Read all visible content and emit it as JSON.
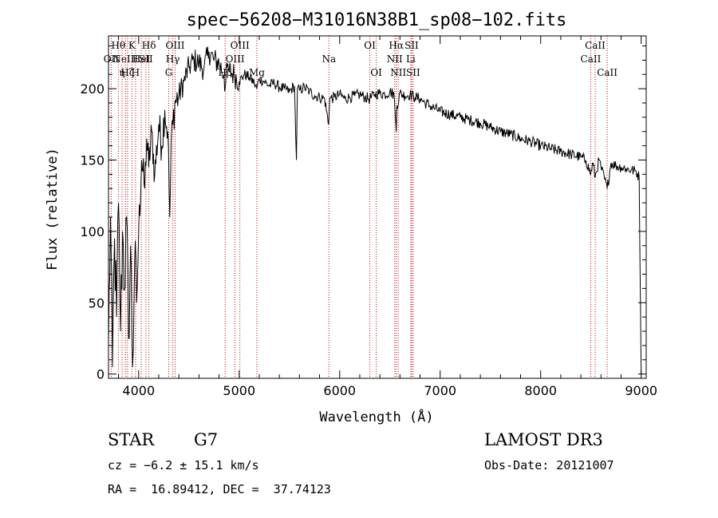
{
  "chart_data": {
    "type": "line",
    "title": "spec−56208−M31016N38B1_sp08−102.fits",
    "xlabel": "Wavelength (Å)",
    "ylabel": "Flux (relative)",
    "xlim": [
      3700,
      9050
    ],
    "ylim": [
      -3,
      237
    ],
    "xticks": [
      4000,
      5000,
      6000,
      7000,
      8000,
      9000
    ],
    "yticks": [
      0,
      50,
      100,
      150,
      200
    ],
    "grid": false,
    "series": [
      {
        "name": "flux",
        "x": [
          3700,
          3720,
          3740,
          3760,
          3780,
          3800,
          3820,
          3840,
          3860,
          3880,
          3900,
          3920,
          3940,
          3960,
          3980,
          4000,
          4030,
          4060,
          4080,
          4100,
          4130,
          4160,
          4200,
          4230,
          4260,
          4290,
          4310,
          4330,
          4340,
          4360,
          4400,
          4450,
          4500,
          4550,
          4600,
          4650,
          4700,
          4750,
          4800,
          4850,
          4861,
          4880,
          4900,
          4950,
          5000,
          5050,
          5100,
          5150,
          5175,
          5200,
          5250,
          5300,
          5350,
          5400,
          5450,
          5500,
          5550,
          5570,
          5580,
          5600,
          5650,
          5700,
          5750,
          5800,
          5850,
          5890,
          5900,
          5950,
          6000,
          6050,
          6100,
          6150,
          6200,
          6250,
          6300,
          6350,
          6400,
          6450,
          6500,
          6540,
          6560,
          6563,
          6570,
          6600,
          6650,
          6700,
          6750,
          6800,
          6850,
          6900,
          6950,
          7000,
          7100,
          7200,
          7300,
          7400,
          7500,
          7600,
          7700,
          7800,
          7900,
          8000,
          8100,
          8200,
          8300,
          8400,
          8450,
          8498,
          8520,
          8542,
          8580,
          8600,
          8662,
          8700,
          8750,
          8800,
          8850,
          8900,
          8950,
          8980,
          9000
        ],
        "values": [
          20,
          110,
          5,
          95,
          40,
          120,
          30,
          100,
          60,
          110,
          25,
          90,
          5,
          80,
          50,
          100,
          150,
          130,
          165,
          145,
          170,
          140,
          175,
          160,
          185,
          170,
          110,
          175,
          175,
          190,
          195,
          205,
          215,
          220,
          218,
          214,
          226,
          220,
          218,
          210,
          200,
          215,
          212,
          210,
          205,
          210,
          208,
          204,
          200,
          207,
          205,
          202,
          204,
          201,
          200,
          198,
          202,
          150,
          200,
          199,
          201,
          198,
          195,
          194,
          193,
          175,
          193,
          194,
          196,
          193,
          194,
          195,
          196,
          194,
          193,
          196,
          197,
          196,
          198,
          196,
          175,
          170,
          188,
          197,
          195,
          196,
          194,
          193,
          190,
          188,
          186,
          184,
          182,
          180,
          178,
          176,
          173,
          170,
          168,
          165,
          163,
          160,
          158,
          156,
          154,
          152,
          150,
          140,
          148,
          138,
          150,
          145,
          130,
          148,
          146,
          145,
          144,
          143,
          142,
          138,
          0
        ]
      }
    ],
    "lines": [
      {
        "x": 3727,
        "label": "OII",
        "row": 2
      },
      {
        "x": 3798,
        "label": "Hθ",
        "row": 1
      },
      {
        "x": 3835,
        "label": "η",
        "row": 3
      },
      {
        "x": 3869,
        "label": "NeIII",
        "row": 2
      },
      {
        "x": 3889,
        "label": "Hζ",
        "row": 3
      },
      {
        "x": 3934,
        "label": "K",
        "row": 1
      },
      {
        "x": 3969,
        "label": "H",
        "row": 3
      },
      {
        "x": 4026,
        "label": "HeI",
        "row": 2
      },
      {
        "x": 4072,
        "label": "SII",
        "row": 2
      },
      {
        "x": 4102,
        "label": "Hδ",
        "row": 1
      },
      {
        "x": 4300,
        "label": "G",
        "row": 3
      },
      {
        "x": 4340,
        "label": "Hγ",
        "row": 2
      },
      {
        "x": 4363,
        "label": "OIII",
        "row": 1
      },
      {
        "x": 4861,
        "label": "Hβ",
        "row": 3
      },
      {
        "x": 4959,
        "label": "OIII",
        "row": 2
      },
      {
        "x": 5007,
        "label": "OIII",
        "row": 1
      },
      {
        "x": 5176,
        "label": "Mg",
        "row": 3
      },
      {
        "x": 5893,
        "label": "Na",
        "row": 2
      },
      {
        "x": 6300,
        "label": "OI",
        "row": 1
      },
      {
        "x": 6364,
        "label": "OI",
        "row": 3
      },
      {
        "x": 6548,
        "label": "NII",
        "row": 2
      },
      {
        "x": 6563,
        "label": "Hα",
        "row": 1
      },
      {
        "x": 6583,
        "label": "NII",
        "row": 3
      },
      {
        "x": 6708,
        "label": "Li",
        "row": 2
      },
      {
        "x": 6716,
        "label": "SII",
        "row": 1
      },
      {
        "x": 6731,
        "label": "SII",
        "row": 3
      },
      {
        "x": 8498,
        "label": "CaII",
        "row": 2
      },
      {
        "x": 8542,
        "label": "CaII",
        "row": 1
      },
      {
        "x": 8662,
        "label": "CaII",
        "row": 3
      }
    ]
  },
  "info": {
    "object_class": "STAR",
    "subclass": "G7",
    "survey": "LAMOST DR3",
    "redshift": "cz = −6.2 ± 15.1 km/s",
    "obs_date": "Obs-Date: 20121007",
    "coords": "RA =  16.89412, DEC =  37.74123"
  },
  "colors": {
    "spectrum": "#000000",
    "line_marker": "#cc0000",
    "axes": "#000000"
  }
}
